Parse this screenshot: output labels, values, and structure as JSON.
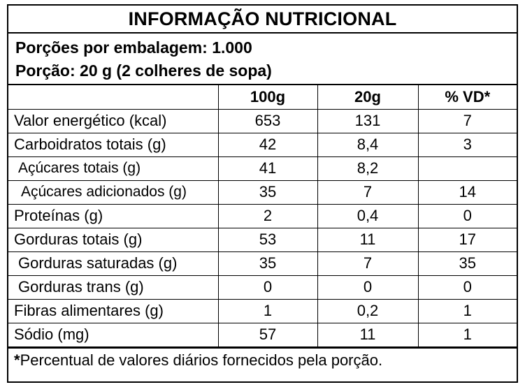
{
  "title": "INFORMAÇÃO NUTRICIONAL",
  "portions": {
    "per_package": "Porções por embalagem: 1.000",
    "portion": "Porção: 20 g (2 colheres de sopa)"
  },
  "headers": [
    "",
    "100g",
    "20g",
    "% VD*"
  ],
  "rows": [
    {
      "name": "Valor energético (kcal)",
      "v100": "653",
      "v20": "131",
      "vd": "7"
    },
    {
      "name": "Carboidratos totais (g)",
      "v100": "42",
      "v20": "8,4",
      "vd": "3"
    },
    {
      "name": "Açúcares totais (g)",
      "v100": "41",
      "v20": "8,2",
      "vd": ""
    },
    {
      "name": "Açúcares adicionados (g)",
      "v100": "35",
      "v20": "7",
      "vd": "14"
    },
    {
      "name": "Proteínas (g)",
      "v100": "2",
      "v20": "0,4",
      "vd": "0"
    },
    {
      "name": "Gorduras totais (g)",
      "v100": "53",
      "v20": "11",
      "vd": "17"
    },
    {
      "name": "Gorduras saturadas (g)",
      "v100": "35",
      "v20": "7",
      "vd": "35"
    },
    {
      "name": "Gorduras trans (g)",
      "v100": "0",
      "v20": "0",
      "vd": "0"
    },
    {
      "name": "Fibras alimentares (g)",
      "v100": "1",
      "v20": "0,2",
      "vd": "1"
    },
    {
      "name": "Sódio (mg)",
      "v100": "57",
      "v20": "11",
      "vd": "1"
    }
  ],
  "footnote": {
    "mark": "*",
    "text": "Percentual de valores diários fornecidos pela porção."
  }
}
